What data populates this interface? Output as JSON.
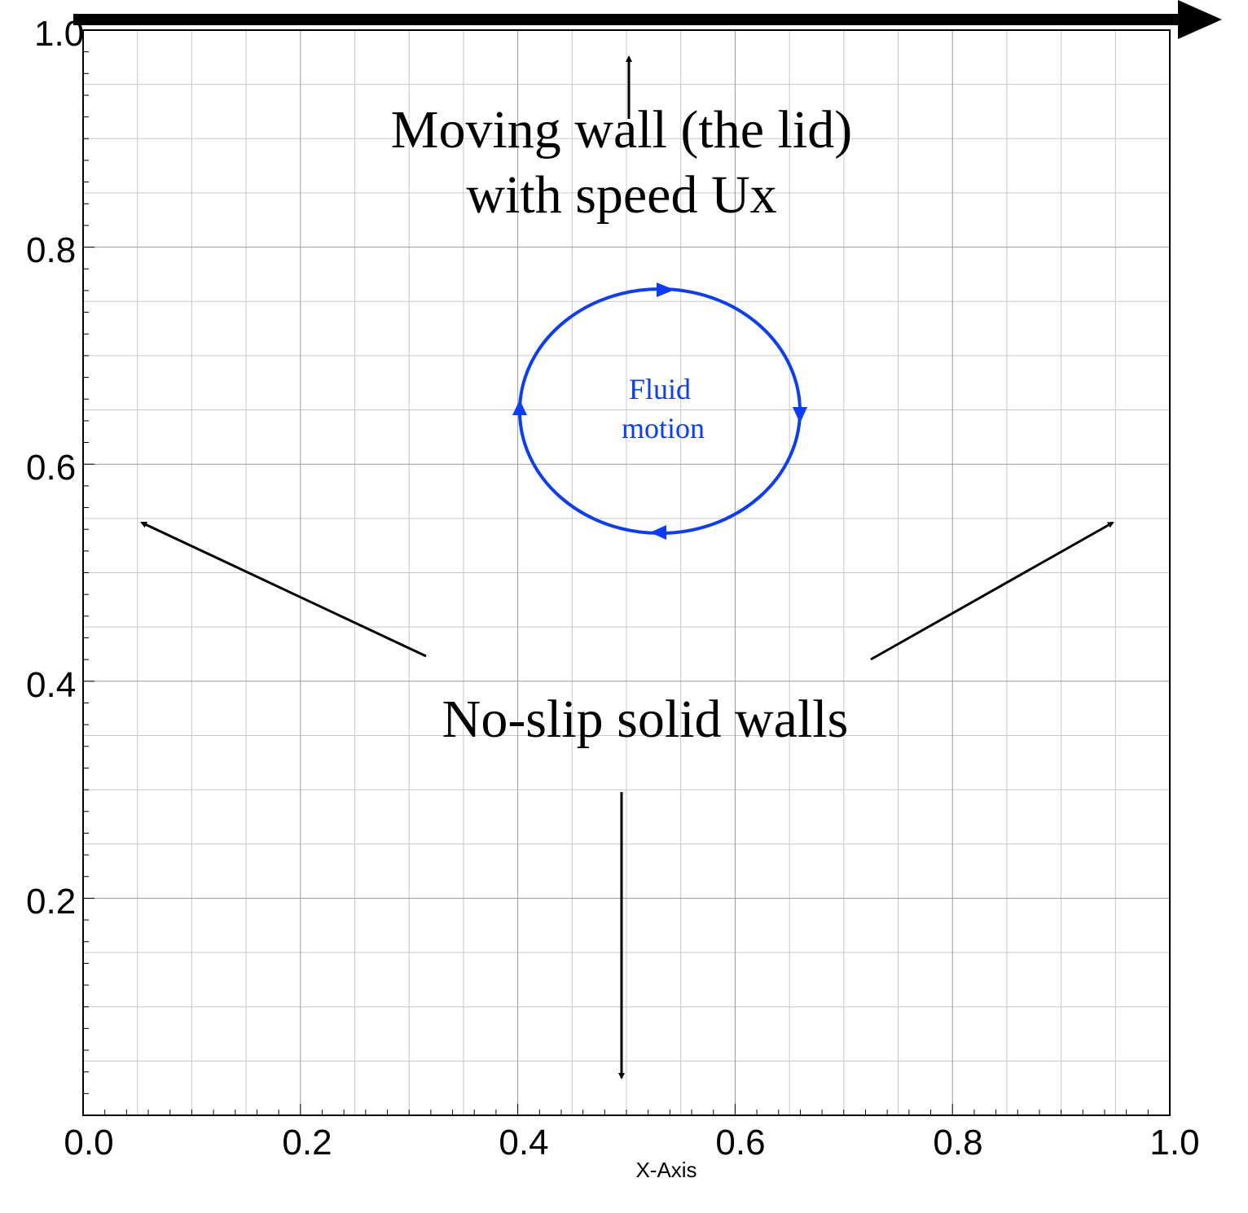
{
  "chart_data": {
    "type": "diagram",
    "xlabel": "X-Axis",
    "ylabel": "",
    "xlim": [
      0,
      1
    ],
    "ylim": [
      0,
      1
    ],
    "grid": true,
    "x_ticks": [
      "0.0",
      "0.2",
      "0.4",
      "0.6",
      "0.8",
      "1.0"
    ],
    "y_ticks": [
      "0.2",
      "0.4",
      "0.6",
      "0.8",
      "1.0"
    ],
    "annotations": {
      "lid_line1": "Moving wall (the lid)",
      "lid_line2": "with speed Ux",
      "walls": "No-slip solid walls",
      "fluid_line1": "Fluid",
      "fluid_line2": "motion"
    },
    "colors": {
      "arrows": "#000000",
      "fluid": "#0a3cff",
      "grid_major": "#9a9a9a",
      "grid_minor": "#c8c8c8"
    }
  }
}
